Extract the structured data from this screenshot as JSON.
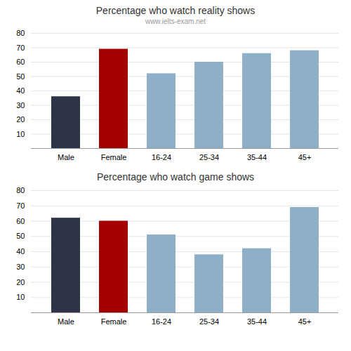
{
  "chart_data": [
    {
      "type": "bar",
      "title": "Percentage who watch reality shows",
      "subtitle": "www.ielts-exam.net",
      "categories": [
        "Male",
        "Female",
        "16-24",
        "25-34",
        "35-44",
        "45+"
      ],
      "values": [
        36,
        69,
        52,
        60,
        66,
        68
      ],
      "colors": [
        "#2e3447",
        "#a50000",
        "#8dafc8",
        "#8dafc8",
        "#8dafc8",
        "#8dafc8"
      ],
      "ylim": [
        0,
        80
      ],
      "yticks": [
        10,
        20,
        30,
        40,
        50,
        60,
        70,
        80
      ],
      "grid": true
    },
    {
      "type": "bar",
      "title": "Percentage who watch game shows",
      "categories": [
        "Male",
        "Female",
        "16-24",
        "25-34",
        "35-44",
        "45+"
      ],
      "values": [
        62,
        60,
        51,
        38,
        42,
        69
      ],
      "colors": [
        "#2e3447",
        "#a50000",
        "#8dafc8",
        "#8dafc8",
        "#8dafc8",
        "#8dafc8"
      ],
      "ylim": [
        0,
        80
      ],
      "yticks": [
        10,
        20,
        30,
        40,
        50,
        60,
        70,
        80
      ],
      "grid": true
    }
  ]
}
